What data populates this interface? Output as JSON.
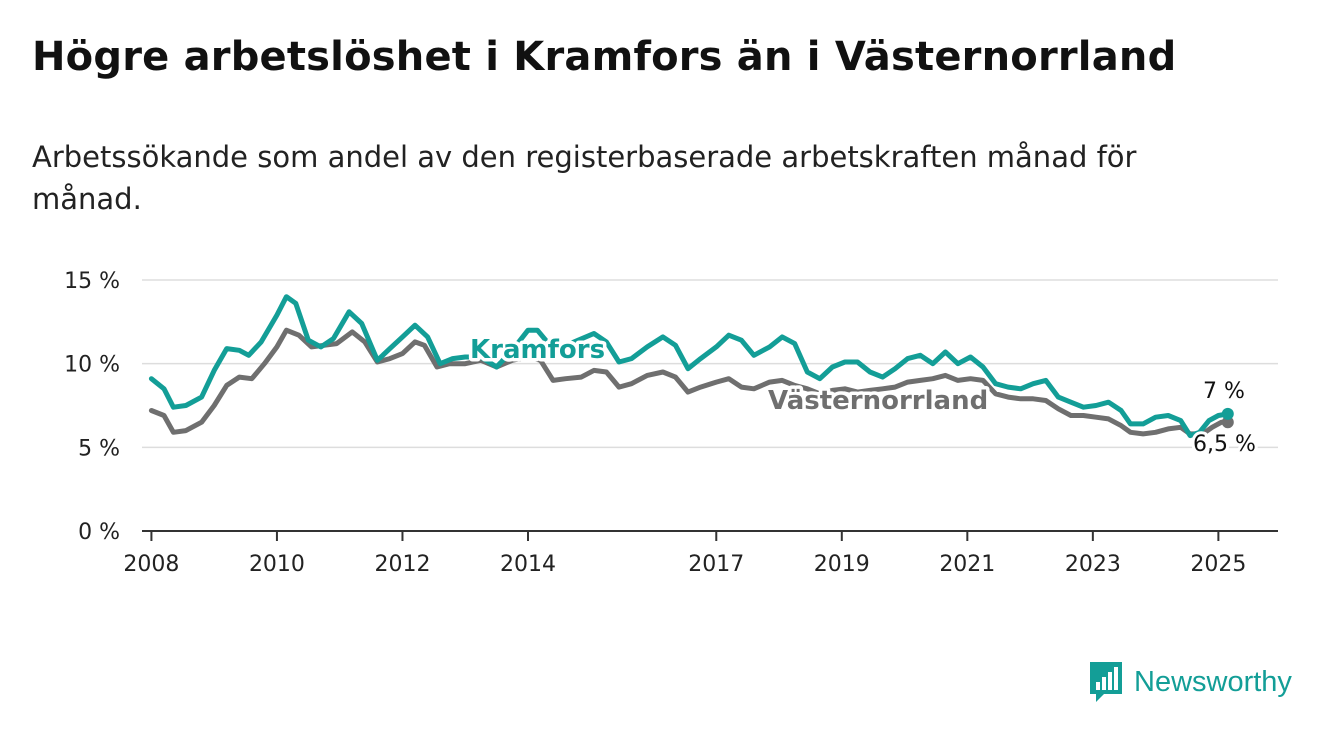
{
  "header": {
    "title": "Högre arbetslöshet i Kramfors än i Västernorrland",
    "subtitle": "Arbetssökande som andel av den registerbaserade arbetskraften månad för månad."
  },
  "brand": {
    "name": "Newsworthy",
    "icon": "bar-chart-icon",
    "color": "#139e97"
  },
  "chart_data": {
    "type": "line",
    "title": "Högre arbetslöshet i Kramfors än i Västernorrland",
    "subtitle": "Arbetssökande som andel av den registerbaserade arbetskraften månad för månad.",
    "ylim": [
      0,
      15
    ],
    "yticks": [
      0,
      5,
      10,
      15
    ],
    "ytick_labels": [
      "0 %",
      "5 %",
      "10 %",
      "15 %"
    ],
    "xlim": [
      2007.85,
      2025.95
    ],
    "xticks": [
      2008,
      2010,
      2012,
      2014,
      2017,
      2019,
      2021,
      2023,
      2025
    ],
    "xtick_labels": [
      "2008",
      "2010",
      "2012",
      "2014",
      "2017",
      "2019",
      "2021",
      "2023",
      "2025"
    ],
    "grid": true,
    "legend": "direct labels on lines",
    "series": [
      {
        "name": "Västernorrland",
        "color": "#6f6f6f",
        "end_label": "6,5 %",
        "points": [
          [
            2008.0,
            7.2
          ],
          [
            2008.2,
            6.9
          ],
          [
            2008.35,
            5.9
          ],
          [
            2008.55,
            6.0
          ],
          [
            2008.8,
            6.5
          ],
          [
            2009.0,
            7.5
          ],
          [
            2009.2,
            8.7
          ],
          [
            2009.4,
            9.2
          ],
          [
            2009.6,
            9.1
          ],
          [
            2009.8,
            10.0
          ],
          [
            2010.0,
            11.0
          ],
          [
            2010.15,
            12.0
          ],
          [
            2010.35,
            11.7
          ],
          [
            2010.55,
            11.0
          ],
          [
            2010.75,
            11.1
          ],
          [
            2010.95,
            11.2
          ],
          [
            2011.2,
            11.9
          ],
          [
            2011.4,
            11.3
          ],
          [
            2011.6,
            10.1
          ],
          [
            2011.8,
            10.3
          ],
          [
            2012.0,
            10.6
          ],
          [
            2012.2,
            11.3
          ],
          [
            2012.35,
            11.1
          ],
          [
            2012.55,
            9.8
          ],
          [
            2012.75,
            10.0
          ],
          [
            2013.0,
            10.0
          ],
          [
            2013.25,
            10.2
          ],
          [
            2013.5,
            9.8
          ],
          [
            2013.75,
            10.2
          ],
          [
            2014.0,
            10.4
          ],
          [
            2014.2,
            10.2
          ],
          [
            2014.4,
            9.0
          ],
          [
            2014.6,
            9.1
          ],
          [
            2014.85,
            9.2
          ],
          [
            2015.05,
            9.6
          ],
          [
            2015.25,
            9.5
          ],
          [
            2015.45,
            8.6
          ],
          [
            2015.65,
            8.8
          ],
          [
            2015.9,
            9.3
          ],
          [
            2016.15,
            9.5
          ],
          [
            2016.35,
            9.2
          ],
          [
            2016.55,
            8.3
          ],
          [
            2016.75,
            8.6
          ],
          [
            2017.0,
            8.9
          ],
          [
            2017.2,
            9.1
          ],
          [
            2017.4,
            8.6
          ],
          [
            2017.6,
            8.5
          ],
          [
            2017.85,
            8.9
          ],
          [
            2018.05,
            9.0
          ],
          [
            2018.25,
            8.7
          ],
          [
            2018.45,
            8.5
          ],
          [
            2018.65,
            8.2
          ],
          [
            2018.85,
            8.4
          ],
          [
            2019.05,
            8.5
          ],
          [
            2019.25,
            8.3
          ],
          [
            2019.45,
            8.4
          ],
          [
            2019.65,
            8.5
          ],
          [
            2019.85,
            8.6
          ],
          [
            2020.05,
            8.9
          ],
          [
            2020.25,
            9.0
          ],
          [
            2020.45,
            9.1
          ],
          [
            2020.65,
            9.3
          ],
          [
            2020.85,
            9.0
          ],
          [
            2021.05,
            9.1
          ],
          [
            2021.25,
            9.0
          ],
          [
            2021.45,
            8.2
          ],
          [
            2021.65,
            8.0
          ],
          [
            2021.85,
            7.9
          ],
          [
            2022.05,
            7.9
          ],
          [
            2022.25,
            7.8
          ],
          [
            2022.45,
            7.3
          ],
          [
            2022.65,
            6.9
          ],
          [
            2022.85,
            6.9
          ],
          [
            2023.05,
            6.8
          ],
          [
            2023.25,
            6.7
          ],
          [
            2023.45,
            6.3
          ],
          [
            2023.6,
            5.9
          ],
          [
            2023.8,
            5.8
          ],
          [
            2024.0,
            5.9
          ],
          [
            2024.2,
            6.1
          ],
          [
            2024.4,
            6.2
          ],
          [
            2024.55,
            5.8
          ],
          [
            2024.75,
            5.8
          ],
          [
            2024.9,
            6.2
          ],
          [
            2025.05,
            6.5
          ],
          [
            2025.15,
            6.5
          ]
        ]
      },
      {
        "name": "Kramfors",
        "color": "#139e97",
        "end_label": "7 %",
        "points": [
          [
            2008.0,
            9.1
          ],
          [
            2008.2,
            8.5
          ],
          [
            2008.35,
            7.4
          ],
          [
            2008.55,
            7.5
          ],
          [
            2008.8,
            8.0
          ],
          [
            2009.0,
            9.6
          ],
          [
            2009.2,
            10.9
          ],
          [
            2009.4,
            10.8
          ],
          [
            2009.55,
            10.5
          ],
          [
            2009.75,
            11.3
          ],
          [
            2010.0,
            12.9
          ],
          [
            2010.15,
            14.0
          ],
          [
            2010.3,
            13.6
          ],
          [
            2010.5,
            11.4
          ],
          [
            2010.7,
            11.0
          ],
          [
            2010.9,
            11.5
          ],
          [
            2011.15,
            13.1
          ],
          [
            2011.35,
            12.4
          ],
          [
            2011.6,
            10.2
          ],
          [
            2011.8,
            10.9
          ],
          [
            2012.0,
            11.6
          ],
          [
            2012.2,
            12.3
          ],
          [
            2012.4,
            11.6
          ],
          [
            2012.6,
            10.0
          ],
          [
            2012.8,
            10.3
          ],
          [
            2013.0,
            10.4
          ],
          [
            2013.25,
            10.4
          ],
          [
            2013.5,
            9.8
          ],
          [
            2013.75,
            10.8
          ],
          [
            2014.0,
            12.0
          ],
          [
            2014.15,
            12.0
          ],
          [
            2014.35,
            11.1
          ],
          [
            2014.55,
            11.0
          ],
          [
            2014.8,
            11.4
          ],
          [
            2015.05,
            11.8
          ],
          [
            2015.25,
            11.3
          ],
          [
            2015.45,
            10.1
          ],
          [
            2015.65,
            10.3
          ],
          [
            2015.9,
            11.0
          ],
          [
            2016.15,
            11.6
          ],
          [
            2016.35,
            11.1
          ],
          [
            2016.55,
            9.7
          ],
          [
            2016.75,
            10.3
          ],
          [
            2017.0,
            11.0
          ],
          [
            2017.2,
            11.7
          ],
          [
            2017.4,
            11.4
          ],
          [
            2017.6,
            10.5
          ],
          [
            2017.85,
            11.0
          ],
          [
            2018.05,
            11.6
          ],
          [
            2018.25,
            11.2
          ],
          [
            2018.45,
            9.5
          ],
          [
            2018.65,
            9.1
          ],
          [
            2018.85,
            9.8
          ],
          [
            2019.05,
            10.1
          ],
          [
            2019.25,
            10.1
          ],
          [
            2019.45,
            9.5
          ],
          [
            2019.65,
            9.2
          ],
          [
            2019.85,
            9.7
          ],
          [
            2020.05,
            10.3
          ],
          [
            2020.25,
            10.5
          ],
          [
            2020.45,
            10.0
          ],
          [
            2020.65,
            10.7
          ],
          [
            2020.85,
            10.0
          ],
          [
            2021.05,
            10.4
          ],
          [
            2021.25,
            9.8
          ],
          [
            2021.45,
            8.8
          ],
          [
            2021.65,
            8.6
          ],
          [
            2021.85,
            8.5
          ],
          [
            2022.05,
            8.8
          ],
          [
            2022.25,
            9.0
          ],
          [
            2022.45,
            8.0
          ],
          [
            2022.65,
            7.7
          ],
          [
            2022.85,
            7.4
          ],
          [
            2023.05,
            7.5
          ],
          [
            2023.25,
            7.7
          ],
          [
            2023.45,
            7.2
          ],
          [
            2023.6,
            6.4
          ],
          [
            2023.8,
            6.4
          ],
          [
            2024.0,
            6.8
          ],
          [
            2024.2,
            6.9
          ],
          [
            2024.4,
            6.6
          ],
          [
            2024.55,
            5.7
          ],
          [
            2024.7,
            5.9
          ],
          [
            2024.85,
            6.6
          ],
          [
            2025.0,
            6.9
          ],
          [
            2025.15,
            7.0
          ]
        ]
      }
    ]
  }
}
